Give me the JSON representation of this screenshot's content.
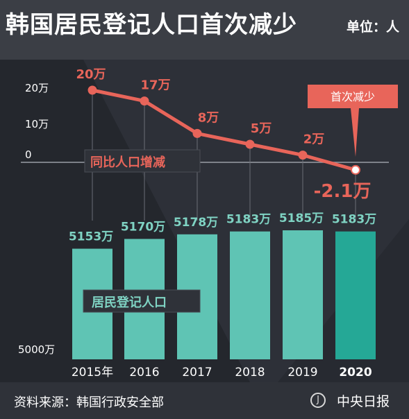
{
  "header": {
    "title": "韩国居民登记人口首次减少",
    "unit": "单位：人"
  },
  "footer": {
    "source": "资料来源：韩国行政安全部",
    "publisher": "中央日报",
    "publisher_icon": "zhongyang-logo-icon"
  },
  "colors": {
    "bar": "#5fc4b4",
    "bar_highlight": "#25a896",
    "line": "#e8655a",
    "label_bar": "#7fd3c3",
    "label_line": "#e8655a",
    "background": "#272a31"
  },
  "chart_data": [
    {
      "type": "line",
      "categories": [
        "2015年",
        "2016",
        "2017",
        "2018",
        "2019",
        "2020"
      ],
      "values": [
        200000,
        170000,
        80000,
        50000,
        20000,
        -21000
      ],
      "value_labels": [
        "20万",
        "17万",
        "8万",
        "5万",
        "2万",
        "-2.1万"
      ],
      "yticks": [
        {
          "value": 200000,
          "label": "20万"
        },
        {
          "value": 100000,
          "label": "10万"
        },
        {
          "value": 0,
          "label": "0"
        }
      ],
      "ylim": [
        -30000,
        220000
      ],
      "series_label": "同比人口增减",
      "annotation": "首次减少"
    },
    {
      "type": "bar",
      "categories": [
        "2015年",
        "2016",
        "2017",
        "2018",
        "2019",
        "2020"
      ],
      "values": [
        51530000,
        51700000,
        51780000,
        51830000,
        51850000,
        51830000
      ],
      "value_labels": [
        "5153万",
        "5170万",
        "5178万",
        "5183万",
        "5185万",
        "5183万"
      ],
      "baseline_label": "5000万",
      "series_label": "居民登记人口"
    }
  ]
}
